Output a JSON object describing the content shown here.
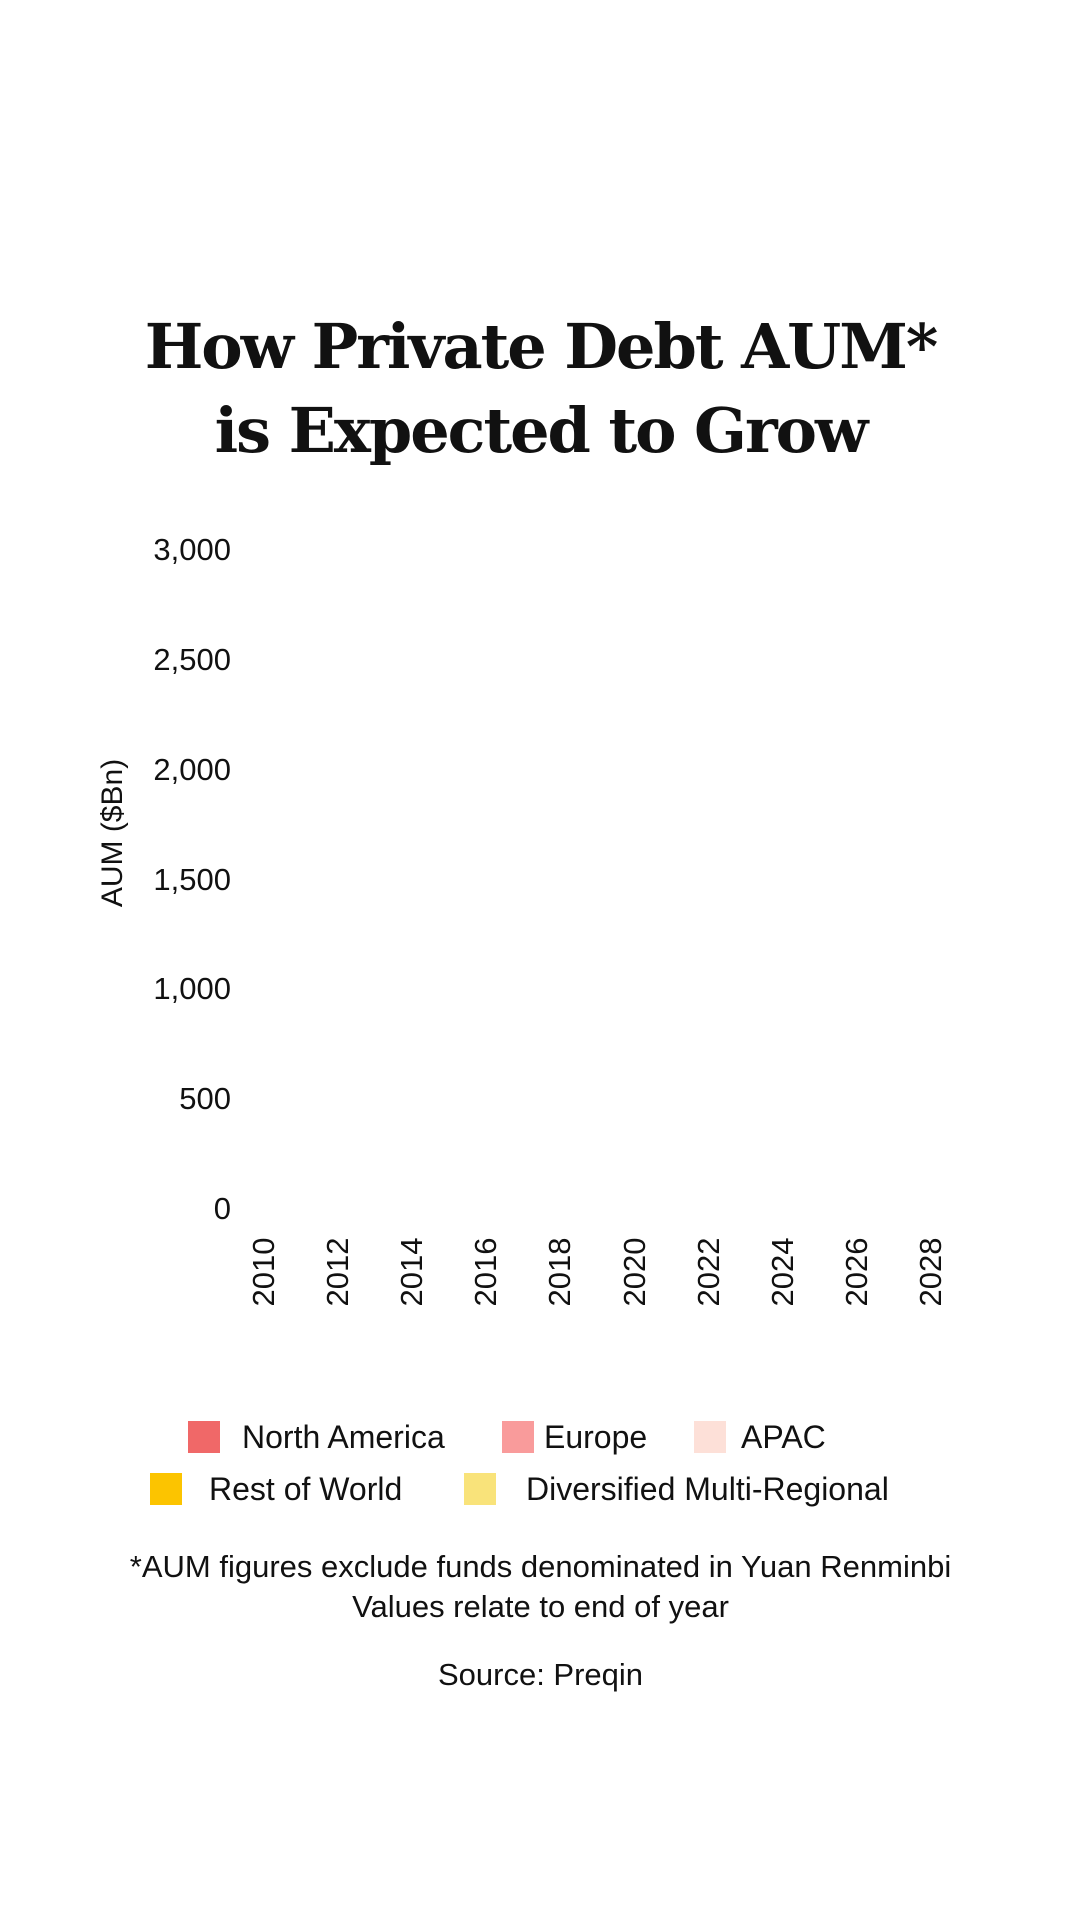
{
  "chart_data": {
    "type": "bar",
    "stacked": true,
    "title": [
      "How Private Debt AUM*",
      "is Expected to Grow"
    ],
    "ylabel": "AUM ($Bn)",
    "ylim": [
      0,
      3000
    ],
    "yticks": [
      "0",
      "500",
      "1,000",
      "1,500",
      "2,000",
      "2,500",
      "3,000"
    ],
    "xticks": [
      "2010",
      "2012",
      "2014",
      "2016",
      "2018",
      "2020",
      "2022",
      "2024",
      "2026",
      "2028"
    ],
    "grid": false,
    "legend_position": "bottom",
    "series": [
      {
        "name": "North America",
        "color": "#f06868",
        "values": []
      },
      {
        "name": "Europe",
        "color": "#f99b9b",
        "values": []
      },
      {
        "name": "APAC",
        "color": "#fde0d8",
        "values": []
      },
      {
        "name": "Rest of World",
        "color": "#fcc400",
        "values": []
      },
      {
        "name": "Diversified Multi-Regional",
        "color": "#f9e37a",
        "values": []
      }
    ],
    "footnotes": [
      "*AUM figures exclude funds denominated in Yuan Renminbi",
      "Values relate to end of year"
    ],
    "source": "Source: Preqin"
  }
}
